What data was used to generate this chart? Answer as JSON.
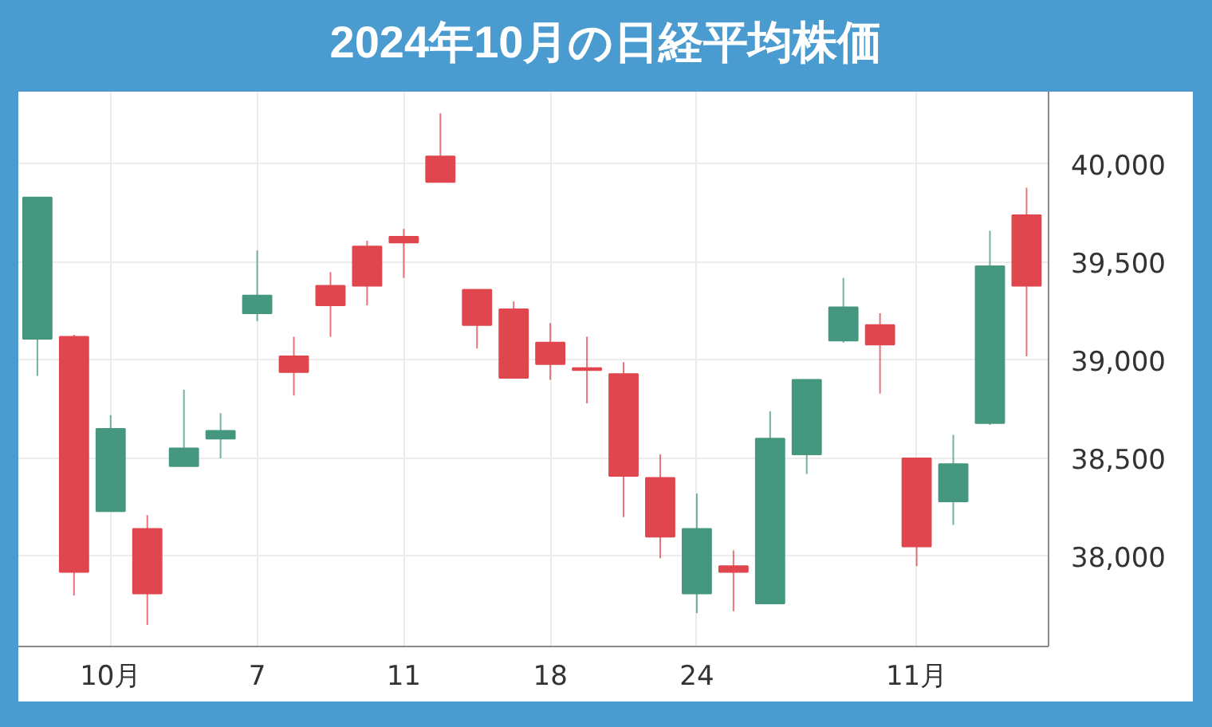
{
  "chart_data": {
    "type": "candlestick",
    "title": "2024年10月の日経平均株価",
    "categories": [
      null,
      null,
      "10月",
      null,
      null,
      null,
      "7",
      null,
      null,
      null,
      "11",
      null,
      null,
      null,
      "18",
      null,
      null,
      null,
      "24",
      null,
      null,
      null,
      null,
      null,
      "11月",
      null,
      null,
      null
    ],
    "ohlc": [
      [
        39110,
        39830,
        38920,
        39830
      ],
      [
        39120,
        39130,
        37800,
        37920
      ],
      [
        38230,
        38720,
        38230,
        38650
      ],
      [
        38140,
        38210,
        37650,
        37810
      ],
      [
        38460,
        38850,
        38460,
        38550
      ],
      [
        38600,
        38730,
        38500,
        38640
      ],
      [
        39240,
        39560,
        39200,
        39330
      ],
      [
        39020,
        39120,
        38820,
        38940
      ],
      [
        39380,
        39450,
        39120,
        39280
      ],
      [
        39580,
        39610,
        39280,
        39380
      ],
      [
        39630,
        39670,
        39420,
        39600
      ],
      [
        40040,
        40260,
        39910,
        39910
      ],
      [
        39360,
        39360,
        39060,
        39180
      ],
      [
        39260,
        39300,
        38910,
        38910
      ],
      [
        39090,
        39190,
        38900,
        38980
      ],
      [
        38960,
        39120,
        38780,
        38950
      ],
      [
        38930,
        38990,
        38200,
        38410
      ],
      [
        38400,
        38520,
        37990,
        38100
      ],
      [
        37810,
        38320,
        37710,
        38140
      ],
      [
        37950,
        38030,
        37720,
        37920
      ],
      [
        37760,
        38740,
        37760,
        38600
      ],
      [
        38520,
        38900,
        38420,
        38900
      ],
      [
        39100,
        39420,
        39090,
        39270
      ],
      [
        39180,
        39240,
        38830,
        39080
      ],
      [
        38500,
        38500,
        37950,
        38050
      ],
      [
        38280,
        38620,
        38160,
        38470
      ],
      [
        38680,
        39660,
        38670,
        39480
      ],
      [
        39740,
        39880,
        39020,
        39380
      ]
    ],
    "colors": [
      "#45977f",
      "#e0464e",
      "#45977f",
      "#e0464e",
      "#45977f",
      "#45977f",
      "#45977f",
      "#e0464e",
      "#e0464e",
      "#e0464e",
      "#e0464e",
      "#e0464e",
      "#e0464e",
      "#e0464e",
      "#e0464e",
      "#e0464e",
      "#e0464e",
      "#e0464e",
      "#45977f",
      "#e0464e",
      "#45977f",
      "#45977f",
      "#45977f",
      "#e0464e",
      "#e0464e",
      "#45977f",
      "#45977f",
      "#e0464e"
    ],
    "ylim": [
      37540,
      40370
    ],
    "yticks": [
      {
        "value": 38000,
        "label": "38,000"
      },
      {
        "value": 38500,
        "label": "38,500"
      },
      {
        "value": 39000,
        "label": "39,000"
      },
      {
        "value": 39500,
        "label": "39,500"
      },
      {
        "value": 40000,
        "label": "40,000"
      }
    ],
    "grid": true
  }
}
